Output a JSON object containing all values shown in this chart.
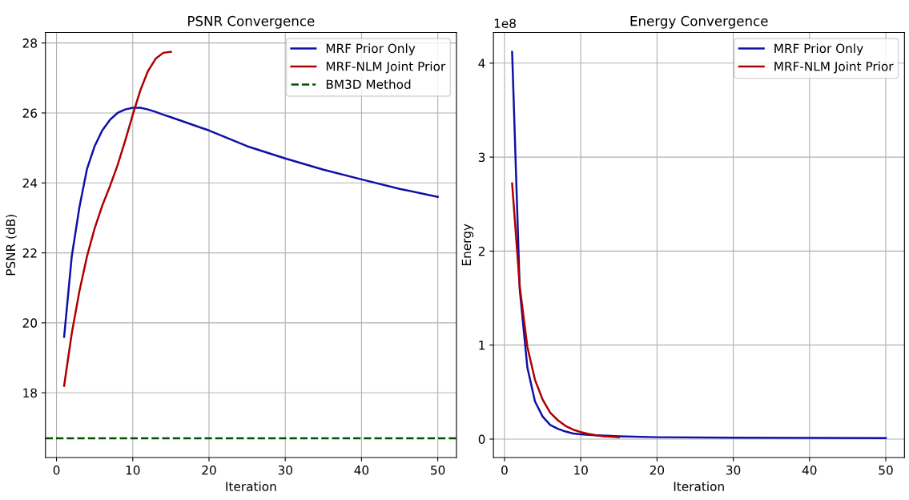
{
  "chart_data": [
    {
      "type": "line",
      "title": "PSNR Convergence",
      "xlabel": "Iteration",
      "ylabel": "PSNR (dB)",
      "xlim": [
        -1.45,
        52.45
      ],
      "xticks": [
        0,
        10,
        20,
        30,
        40,
        50
      ],
      "ylim": [
        16.15,
        28.3
      ],
      "yticks": [
        18,
        20,
        22,
        24,
        26,
        28
      ],
      "grid": true,
      "legend": "top right",
      "line_style": "solid",
      "series": [
        {
          "name": "MRF Prior Only",
          "color": "#1010a8",
          "x": [
            1,
            2,
            3,
            4,
            5,
            6,
            7,
            8,
            9,
            10,
            11,
            12,
            13,
            14,
            15,
            20,
            25,
            30,
            35,
            40,
            45,
            50
          ],
          "values": [
            19.6,
            21.9,
            23.3,
            24.4,
            25.05,
            25.5,
            25.8,
            26.0,
            26.1,
            26.15,
            26.15,
            26.1,
            26.03,
            25.95,
            25.88,
            25.5,
            25.05,
            24.7,
            24.38,
            24.1,
            23.83,
            23.6
          ]
        },
        {
          "name": "MRF-NLM Joint Prior",
          "color": "#b00000",
          "x": [
            1,
            2,
            3,
            4,
            5,
            6,
            7,
            8,
            9,
            10,
            11,
            12,
            13,
            14,
            15
          ],
          "values": [
            18.2,
            19.7,
            20.9,
            21.9,
            22.7,
            23.35,
            23.9,
            24.5,
            25.2,
            25.95,
            26.65,
            27.2,
            27.55,
            27.72,
            27.75
          ]
        }
      ],
      "ref_lines": [
        {
          "axis": "y",
          "value": 16.7,
          "label": "BM3D Method",
          "color": "#005000",
          "line_style": "dashed"
        }
      ]
    },
    {
      "type": "line",
      "title": "Energy Convergence",
      "xlabel": "Iteration",
      "ylabel": "Energy",
      "xlim": [
        -1.45,
        52.45
      ],
      "xticks": [
        0,
        10,
        20,
        30,
        40,
        50
      ],
      "ylim": [
        -0.196,
        4.326
      ],
      "yticks": [
        0,
        1,
        2,
        3,
        4
      ],
      "grid": true,
      "legend": "top right",
      "line_style": "solid",
      "annotations": [
        "1e8"
      ],
      "series": [
        {
          "name": "MRF Prior Only",
          "color": "#1010a8",
          "x": [
            1,
            2,
            3,
            4,
            5,
            6,
            7,
            8,
            9,
            10,
            12,
            15,
            20,
            30,
            40,
            50
          ],
          "values": [
            4.12,
            1.59,
            0.76,
            0.4,
            0.24,
            0.15,
            0.11,
            0.08,
            0.06,
            0.05,
            0.04,
            0.03,
            0.02,
            0.015,
            0.012,
            0.01
          ]
        },
        {
          "name": "MRF-NLM Joint Prior",
          "color": "#b00000",
          "x": [
            1,
            2,
            3,
            4,
            5,
            6,
            7,
            8,
            9,
            10,
            11,
            12,
            13,
            14,
            15
          ],
          "values": [
            2.72,
            1.62,
            0.98,
            0.63,
            0.42,
            0.28,
            0.2,
            0.14,
            0.1,
            0.075,
            0.055,
            0.04,
            0.03,
            0.025,
            0.02
          ]
        }
      ]
    }
  ]
}
